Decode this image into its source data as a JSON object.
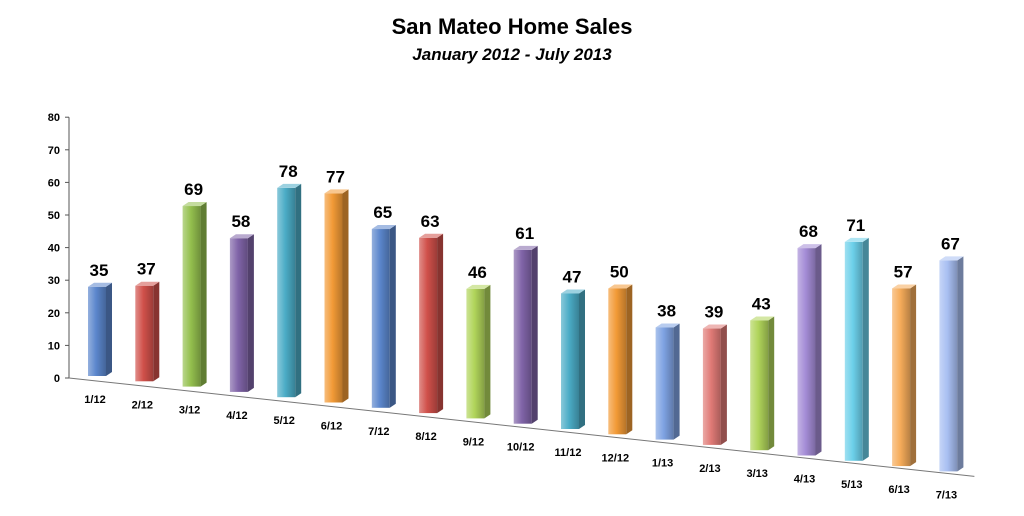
{
  "chart_data": {
    "type": "bar",
    "title": "San Mateo Home Sales",
    "subtitle": "January 2012 - July 2013",
    "xlabel": "",
    "ylabel": "",
    "ylim": [
      0,
      80
    ],
    "yticks": [
      0,
      10,
      20,
      30,
      40,
      50,
      60,
      70,
      80
    ],
    "grid": false,
    "style": "3d-columns",
    "categories": [
      "1/12",
      "2/12",
      "3/12",
      "4/12",
      "5/12",
      "6/12",
      "7/12",
      "8/12",
      "9/12",
      "10/12",
      "11/12",
      "12/12",
      "1/13",
      "2/13",
      "3/13",
      "4/13",
      "5/13",
      "6/13",
      "7/13"
    ],
    "values": [
      35,
      37,
      69,
      58,
      78,
      77,
      65,
      63,
      46,
      61,
      47,
      50,
      38,
      39,
      43,
      68,
      71,
      57,
      67
    ],
    "colors": [
      "#5b86cc",
      "#d0504a",
      "#94c04e",
      "#8064a8",
      "#4bacc6",
      "#f29a36",
      "#5b86cc",
      "#d0504a",
      "#b0d45a",
      "#8064a8",
      "#4bacc6",
      "#f29a36",
      "#7ea2e2",
      "#e07a76",
      "#b0d45a",
      "#a48cd6",
      "#6cd0ea",
      "#f6ac5a",
      "#a8bff2"
    ]
  }
}
